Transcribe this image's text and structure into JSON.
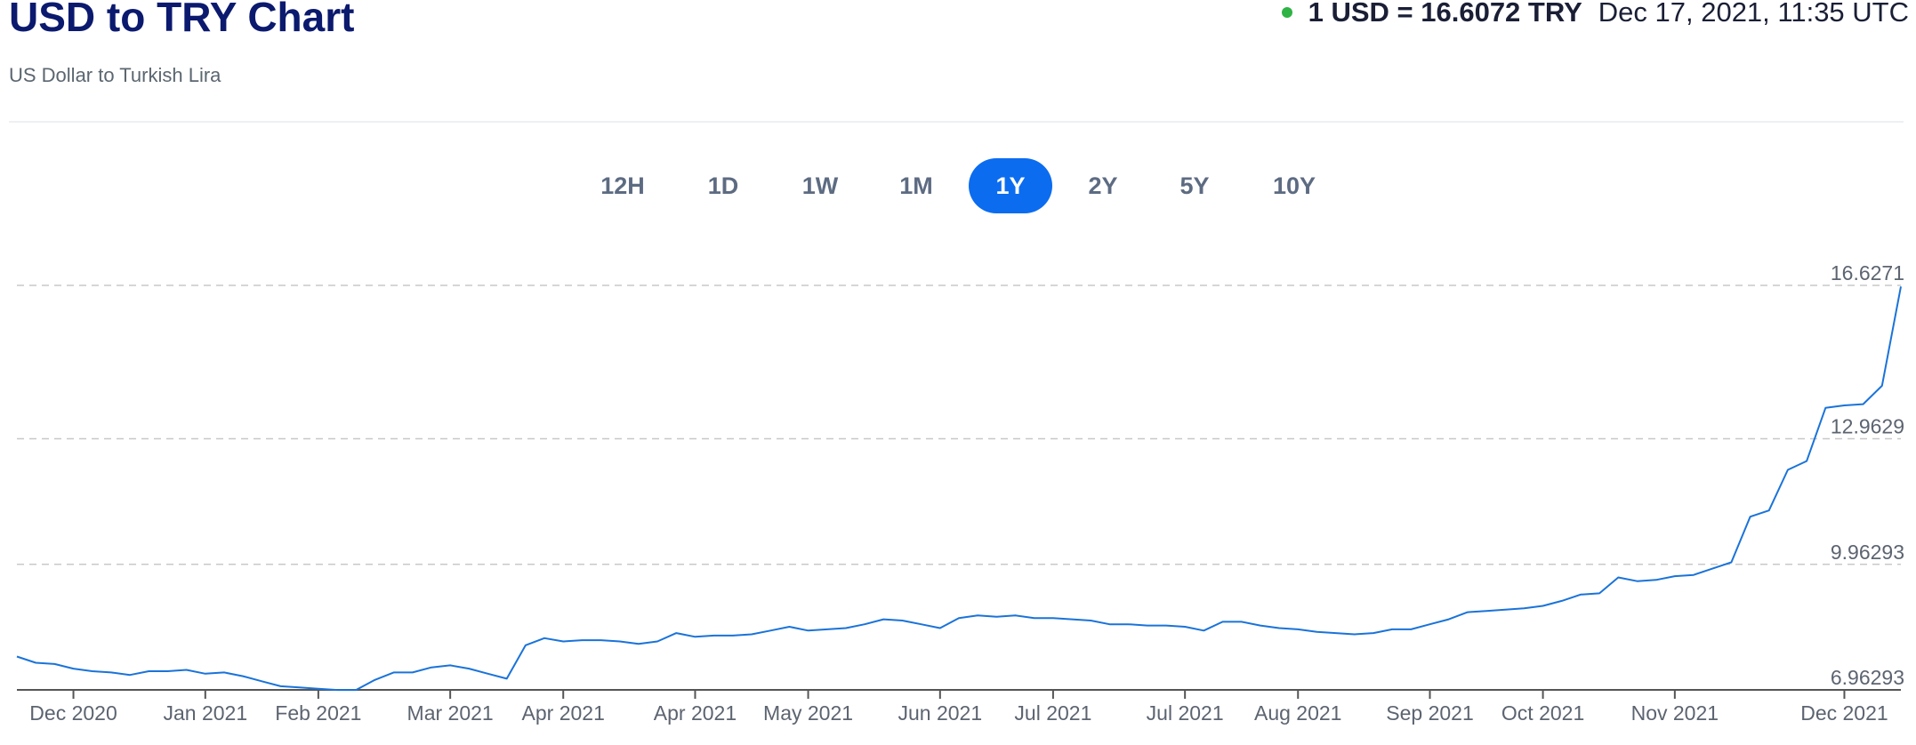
{
  "header": {
    "title": "USD to TRY Chart",
    "subtitle": "US Dollar to Turkish Lira"
  },
  "rate": {
    "text": "1 USD = 16.6072 TRY",
    "timestamp": "Dec 17, 2021, 11:35 UTC"
  },
  "ranges": [
    "12H",
    "1D",
    "1W",
    "1M",
    "1Y",
    "2Y",
    "5Y",
    "10Y"
  ],
  "active_range": "1Y",
  "chart_data": {
    "type": "line",
    "categories": [
      null,
      null,
      null,
      "Dec 2020",
      null,
      null,
      null,
      null,
      null,
      null,
      "Jan 2021",
      null,
      null,
      null,
      null,
      null,
      "Feb 2021",
      null,
      null,
      null,
      null,
      null,
      null,
      "Mar 2021",
      null,
      null,
      null,
      null,
      null,
      "Apr 2021",
      null,
      null,
      null,
      null,
      null,
      null,
      "Apr 2021",
      null,
      null,
      null,
      null,
      null,
      "May 2021",
      null,
      null,
      null,
      null,
      null,
      null,
      "Jun 2021",
      null,
      null,
      null,
      null,
      null,
      "Jul 2021",
      null,
      null,
      null,
      null,
      null,
      null,
      "Jul 2021",
      null,
      null,
      null,
      null,
      null,
      "Aug 2021",
      null,
      null,
      null,
      null,
      null,
      null,
      "Sep 2021",
      null,
      null,
      null,
      null,
      null,
      "Oct 2021",
      null,
      null,
      null,
      null,
      null,
      null,
      "Nov 2021",
      null,
      null,
      null,
      null,
      null,
      null,
      null,
      null,
      "Dec 2021",
      null,
      null,
      null
    ],
    "series": [
      {
        "name": "USD/TRY",
        "color": "#1a73d9",
        "values": [
          7.76,
          7.61,
          7.58,
          7.47,
          7.41,
          7.38,
          7.32,
          7.41,
          7.41,
          7.44,
          7.35,
          7.38,
          7.29,
          7.17,
          7.05,
          7.02,
          6.99,
          6.96,
          6.96,
          7.2,
          7.38,
          7.38,
          7.5,
          7.55,
          7.47,
          7.35,
          7.23,
          8.03,
          8.2,
          8.12,
          8.15,
          8.15,
          8.12,
          8.06,
          8.12,
          8.32,
          8.23,
          8.26,
          8.26,
          8.29,
          8.38,
          8.47,
          8.38,
          8.41,
          8.44,
          8.53,
          8.65,
          8.62,
          8.53,
          8.44,
          8.68,
          8.74,
          8.71,
          8.74,
          8.68,
          8.68,
          8.65,
          8.62,
          8.53,
          8.53,
          8.5,
          8.5,
          8.47,
          8.38,
          8.59,
          8.59,
          8.5,
          8.44,
          8.41,
          8.35,
          8.32,
          8.29,
          8.32,
          8.41,
          8.41,
          8.53,
          8.65,
          8.82,
          8.85,
          8.88,
          8.91,
          8.97,
          9.09,
          9.24,
          9.27,
          9.65,
          9.56,
          9.59,
          9.68,
          9.71,
          9.86,
          10.01,
          11.1,
          11.25,
          12.22,
          12.43,
          13.7,
          13.76,
          13.79,
          14.23,
          16.6
        ]
      }
    ],
    "ylim": [
      6.96293,
      16.6271
    ],
    "yticks": [
      6.96293,
      9.96293,
      12.9629,
      16.6271
    ],
    "grid": true
  }
}
